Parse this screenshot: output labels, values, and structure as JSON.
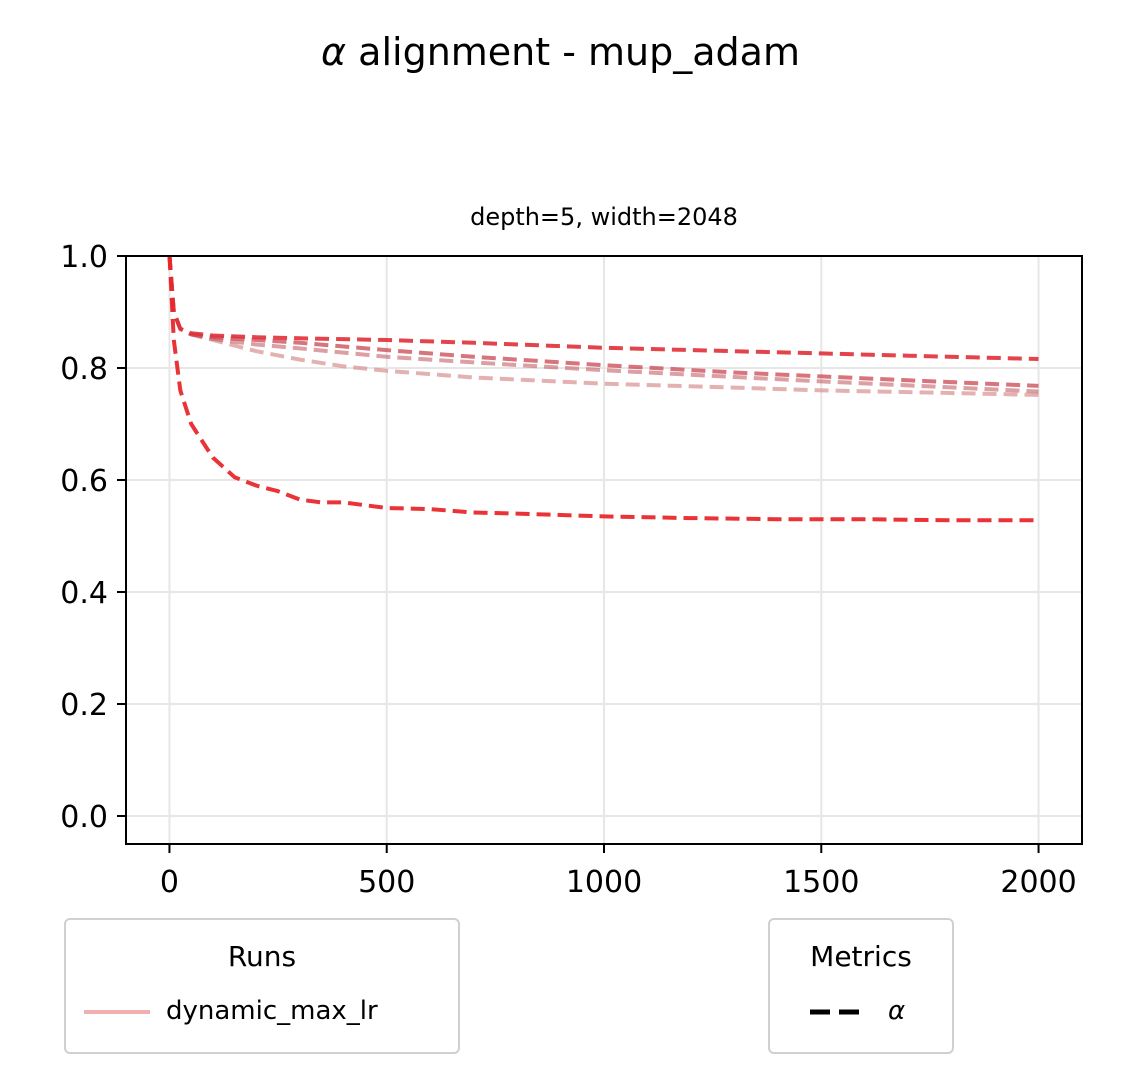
{
  "figure": {
    "title_symbol": "α",
    "title_text": " alignment - mup_adam",
    "subplot_title": "depth=5, width=2048"
  },
  "legends": {
    "runs": {
      "title": "Runs",
      "entry_label": "dynamic_max_lr",
      "entry_color": "#f0b0b0"
    },
    "metrics": {
      "title": "Metrics",
      "entry_label": "α",
      "entry_style": "dashed"
    }
  },
  "chart_data": {
    "type": "line",
    "title": "depth=5, width=2048",
    "xlabel": "",
    "ylabel": "",
    "xlim": [
      -100,
      2100
    ],
    "ylim": [
      -0.05,
      1.0
    ],
    "xticks": [
      0,
      500,
      1000,
      1500,
      2000
    ],
    "yticks": [
      0.0,
      0.2,
      0.4,
      0.6,
      0.8,
      1.0
    ],
    "grid": true,
    "line_style": "dashed",
    "series": [
      {
        "color": "#e8282c",
        "opacity": 0.95,
        "x": [
          0,
          10,
          25,
          50,
          75,
          100,
          150,
          200,
          250,
          300,
          350,
          400,
          500,
          600,
          700,
          800,
          1000,
          1200,
          1400,
          1600,
          1800,
          2000
        ],
        "y": [
          1.0,
          0.85,
          0.76,
          0.7,
          0.67,
          0.64,
          0.605,
          0.59,
          0.58,
          0.565,
          0.56,
          0.56,
          0.55,
          0.548,
          0.542,
          0.54,
          0.535,
          0.532,
          0.53,
          0.53,
          0.528,
          0.528
        ]
      },
      {
        "color": "#e03038",
        "opacity": 0.9,
        "x": [
          0,
          10,
          25,
          50,
          100,
          200,
          300,
          500,
          700,
          1000,
          1300,
          1500,
          1700,
          2000
        ],
        "y": [
          1.0,
          0.9,
          0.87,
          0.862,
          0.858,
          0.855,
          0.853,
          0.85,
          0.845,
          0.836,
          0.83,
          0.826,
          0.822,
          0.816
        ]
      },
      {
        "color": "#c84850",
        "opacity": 0.75,
        "x": [
          0,
          10,
          25,
          50,
          100,
          200,
          300,
          500,
          700,
          1000,
          1300,
          1500,
          1700,
          2000
        ],
        "y": [
          1.0,
          0.9,
          0.87,
          0.86,
          0.855,
          0.85,
          0.845,
          0.832,
          0.82,
          0.805,
          0.792,
          0.785,
          0.778,
          0.768
        ]
      },
      {
        "color": "#c0505a",
        "opacity": 0.55,
        "x": [
          0,
          10,
          25,
          50,
          100,
          200,
          300,
          500,
          700,
          1000,
          1300,
          1500,
          1700,
          2000
        ],
        "y": [
          1.0,
          0.9,
          0.87,
          0.86,
          0.852,
          0.842,
          0.835,
          0.82,
          0.81,
          0.796,
          0.784,
          0.776,
          0.769,
          0.758
        ]
      },
      {
        "color": "#d89090",
        "opacity": 0.7,
        "x": [
          0,
          10,
          25,
          50,
          100,
          150,
          200,
          300,
          400,
          500,
          700,
          1000,
          1300,
          1500,
          1700,
          2000
        ],
        "y": [
          1.0,
          0.9,
          0.87,
          0.86,
          0.85,
          0.84,
          0.83,
          0.815,
          0.803,
          0.795,
          0.783,
          0.772,
          0.765,
          0.76,
          0.757,
          0.752
        ]
      }
    ]
  }
}
